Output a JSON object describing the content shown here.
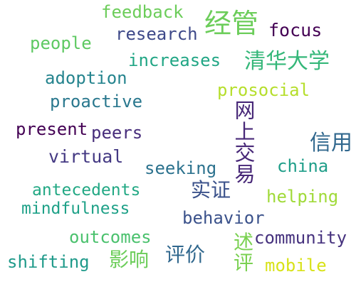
{
  "words": [
    {
      "id": "feedback",
      "text": "feedback",
      "color": "#6ccd5a"
    },
    {
      "id": "research",
      "text": "research",
      "color": "#3e4989"
    },
    {
      "id": "jingguan",
      "text": "经管",
      "color": "#6ccd5a"
    },
    {
      "id": "focus",
      "text": "focus",
      "color": "#440154"
    },
    {
      "id": "people",
      "text": "people",
      "color": "#5ec962"
    },
    {
      "id": "increases",
      "text": "increases",
      "color": "#21a685"
    },
    {
      "id": "tsinghua",
      "text": "清华大学",
      "color": "#35b779"
    },
    {
      "id": "adoption",
      "text": "adoption",
      "color": "#25848e"
    },
    {
      "id": "prosocial",
      "text": "prosocial",
      "color": "#b5de2b"
    },
    {
      "id": "proactive",
      "text": "proactive",
      "color": "#2a788e"
    },
    {
      "id": "wangshang-jiaoyi",
      "text": "网上交易",
      "color": "#482878"
    },
    {
      "id": "present",
      "text": "present",
      "color": "#440154"
    },
    {
      "id": "peers",
      "text": "peers",
      "color": "#472d7b"
    },
    {
      "id": "xinyong",
      "text": "信用",
      "color": "#31688e"
    },
    {
      "id": "virtual",
      "text": "virtual",
      "color": "#443983"
    },
    {
      "id": "seeking",
      "text": "seeking",
      "color": "#2c728e"
    },
    {
      "id": "china",
      "text": "china",
      "color": "#1f9e89"
    },
    {
      "id": "antecedents",
      "text": "antecedents",
      "color": "#22a884"
    },
    {
      "id": "shizheng",
      "text": "实证",
      "color": "#3b528b"
    },
    {
      "id": "helping",
      "text": "helping",
      "color": "#a0da39"
    },
    {
      "id": "mindfulness",
      "text": "mindfulness",
      "color": "#1fa188"
    },
    {
      "id": "behavior",
      "text": "behavior",
      "color": "#3b528b"
    },
    {
      "id": "outcomes",
      "text": "outcomes",
      "color": "#4ac16d"
    },
    {
      "id": "community",
      "text": "community",
      "color": "#46327e"
    },
    {
      "id": "shuping",
      "text": "述评",
      "color": "#7ad151"
    },
    {
      "id": "shifting",
      "text": "shifting",
      "color": "#1f9a8a"
    },
    {
      "id": "yingxiang",
      "text": "影响",
      "color": "#6ccd5a"
    },
    {
      "id": "pingjia",
      "text": "评价",
      "color": "#31688e"
    },
    {
      "id": "mobile",
      "text": "mobile",
      "color": "#d8e219"
    }
  ]
}
